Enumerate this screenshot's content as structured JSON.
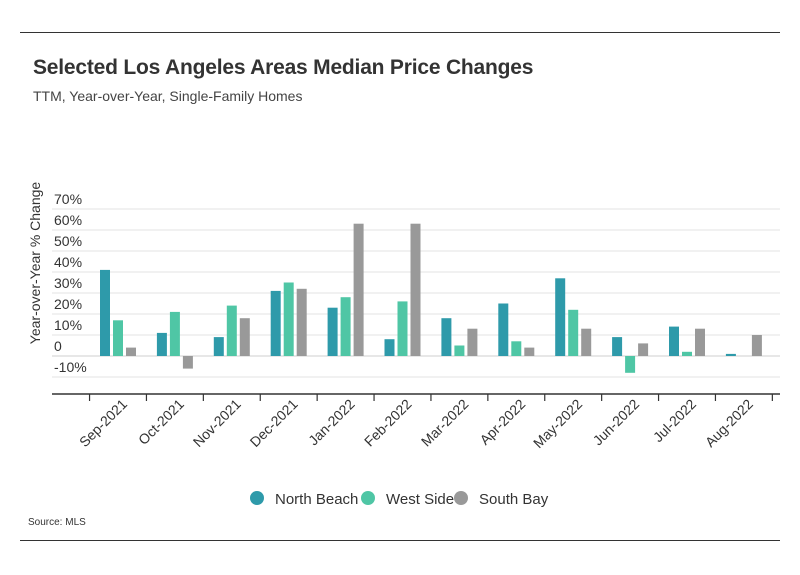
{
  "title": "Selected Los Angeles Areas Median Price Changes",
  "subtitle": "TTM, Year-over-Year, Single-Family Homes",
  "source": "Source:  MLS",
  "chart_data": {
    "type": "bar",
    "title": "Selected Los Angeles Areas Median Price Changes",
    "subtitle": "TTM, Year-over-Year, Single-Family Homes",
    "ylabel": "Year-over-Year % Change",
    "xlabel": "",
    "ylim": [
      -15,
      70
    ],
    "y_ticks": [
      {
        "value": 70,
        "label": "70%"
      },
      {
        "value": 60,
        "label": "60%"
      },
      {
        "value": 50,
        "label": "50%"
      },
      {
        "value": 40,
        "label": "40%"
      },
      {
        "value": 30,
        "label": "30%"
      },
      {
        "value": 20,
        "label": "20%"
      },
      {
        "value": 10,
        "label": "10%"
      },
      {
        "value": 0,
        "label": "0"
      },
      {
        "value": -10,
        "label": "-10%"
      }
    ],
    "grid": true,
    "legend_position": "bottom",
    "categories": [
      "Sep-2021",
      "Oct-2021",
      "Nov-2021",
      "Dec-2021",
      "Jan-2022",
      "Feb-2022",
      "Mar-2022",
      "Apr-2022",
      "May-2022",
      "Jun-2022",
      "Jul-2022",
      "Aug-2022"
    ],
    "series": [
      {
        "name": "North Beach",
        "color": "#2e9aaa",
        "values": [
          41,
          11,
          9,
          31,
          23,
          8,
          18,
          25,
          37,
          9,
          14,
          1
        ]
      },
      {
        "name": "West Side",
        "color": "#4fc6a5",
        "values": [
          17,
          21,
          24,
          35,
          28,
          26,
          5,
          7,
          22,
          -8,
          2,
          0
        ]
      },
      {
        "name": "South Bay",
        "color": "#999999",
        "values": [
          4,
          -6,
          18,
          32,
          63,
          63,
          13,
          4,
          13,
          6,
          13,
          10
        ]
      }
    ]
  }
}
